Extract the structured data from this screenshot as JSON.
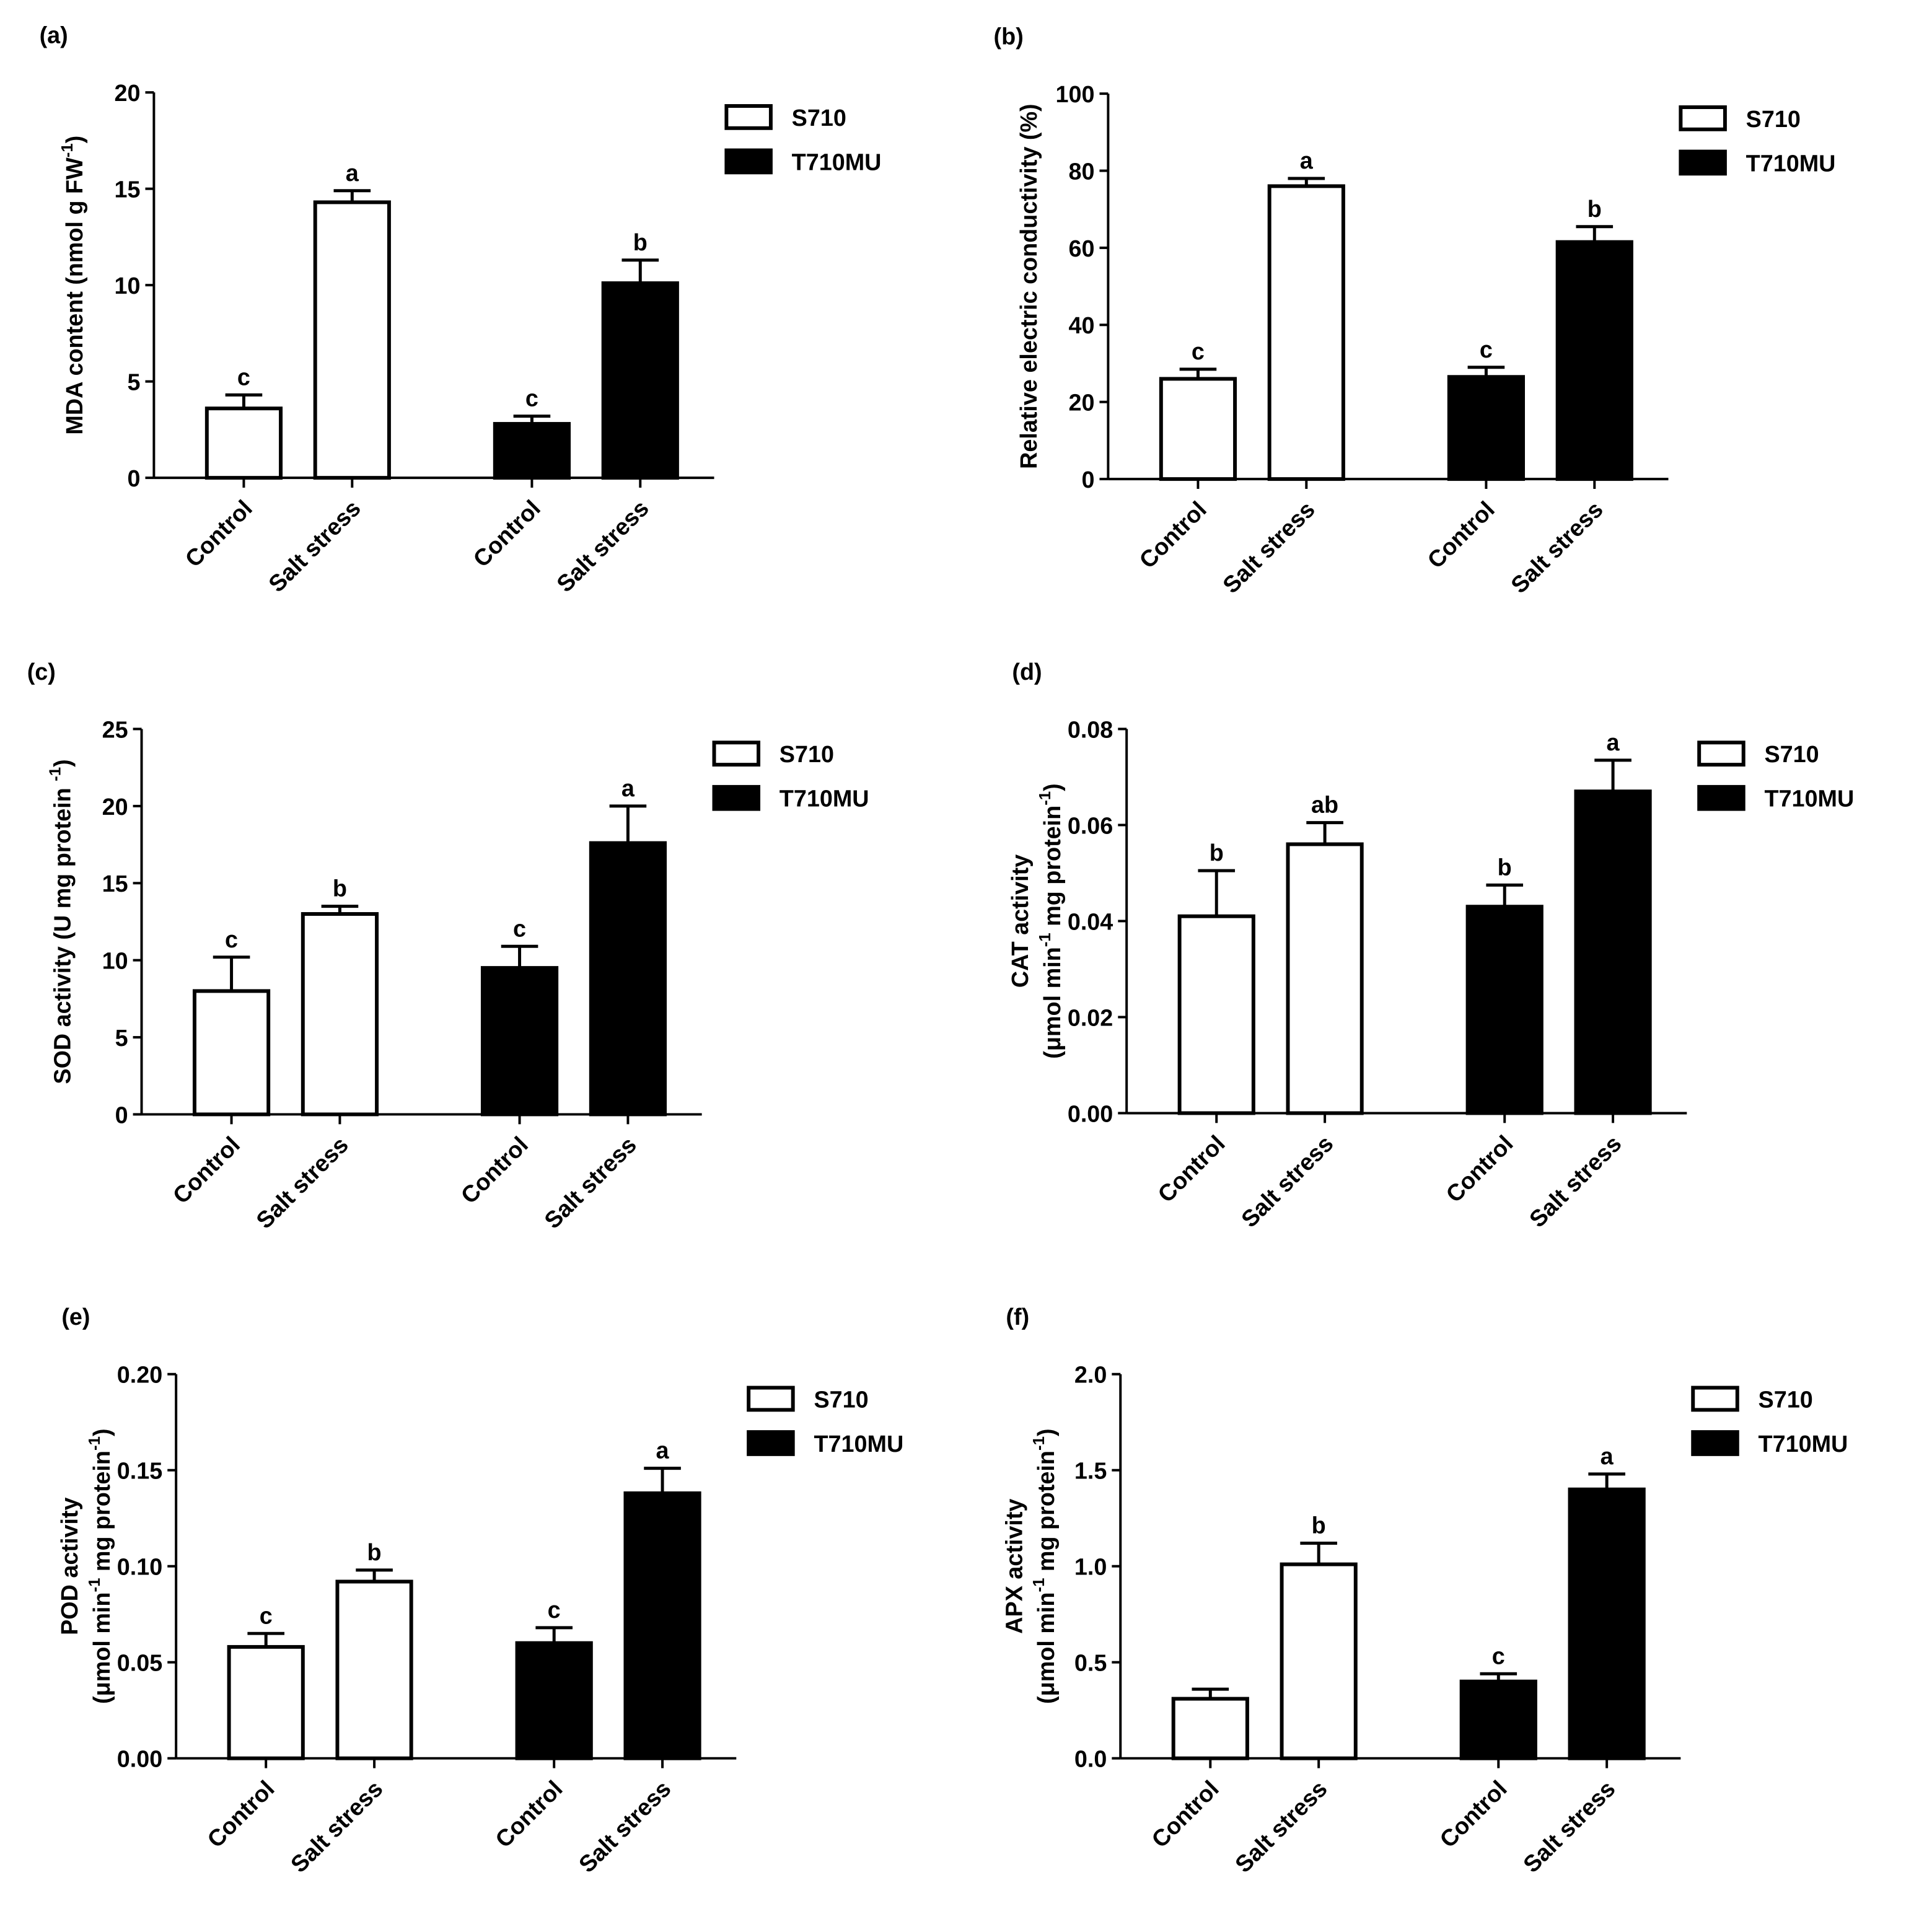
{
  "chart_data": [
    {
      "type": "bar",
      "panel": "(a)",
      "ylabel": [
        [
          "MDA content (nmol g FW",
          "-1",
          ")"
        ]
      ],
      "categories": [
        "Control",
        "Salt stress",
        "Control",
        "Salt stress"
      ],
      "series": [
        {
          "name": "S710",
          "color": "#ffffff",
          "values": [
            3.6,
            14.3,
            null,
            null
          ],
          "errors": [
            0.7,
            0.6,
            null,
            null
          ]
        },
        {
          "name": "T710MU",
          "color": "#000000",
          "values": [
            null,
            null,
            2.8,
            10.1
          ],
          "errors": [
            null,
            null,
            0.4,
            1.2
          ]
        }
      ],
      "annotations": [
        "c",
        "a",
        "c",
        "b"
      ],
      "ylim": [
        0,
        20
      ],
      "yticks": [
        0,
        5,
        10,
        15,
        20
      ]
    },
    {
      "type": "bar",
      "panel": "(b)",
      "ylabel": [
        [
          "Relative electric conductivity (%)"
        ]
      ],
      "categories": [
        "Control",
        "Salt stress",
        "Control",
        "Salt stress"
      ],
      "series": [
        {
          "name": "S710",
          "color": "#ffffff",
          "values": [
            26,
            76,
            null,
            null
          ],
          "errors": [
            2.5,
            2,
            null,
            null
          ]
        },
        {
          "name": "T710MU",
          "color": "#000000",
          "values": [
            null,
            null,
            26.5,
            61.5
          ],
          "errors": [
            null,
            null,
            2.5,
            4
          ]
        }
      ],
      "annotations": [
        "c",
        "a",
        "c",
        "b"
      ],
      "ylim": [
        0,
        100
      ],
      "yticks": [
        0,
        20,
        40,
        60,
        80,
        100
      ]
    },
    {
      "type": "bar",
      "panel": "(c)",
      "ylabel": [
        [
          "SOD activity (U mg protein ",
          "-1",
          ")"
        ]
      ],
      "categories": [
        "Control",
        "Salt stress",
        "Control",
        "Salt stress"
      ],
      "series": [
        {
          "name": "S710",
          "color": "#ffffff",
          "values": [
            8,
            13,
            null,
            null
          ],
          "errors": [
            2.2,
            0.5,
            null,
            null
          ]
        },
        {
          "name": "T710MU",
          "color": "#000000",
          "values": [
            null,
            null,
            9.5,
            17.6
          ],
          "errors": [
            null,
            null,
            1.4,
            2.4
          ]
        }
      ],
      "annotations": [
        "c",
        "b",
        "c",
        "a"
      ],
      "ylim": [
        0,
        25
      ],
      "yticks": [
        0,
        5,
        10,
        15,
        20,
        25
      ]
    },
    {
      "type": "bar",
      "panel": "(d)",
      "ylabel": [
        [
          "CAT activity"
        ],
        [
          "(μmol  min",
          "-1",
          " mg protein",
          "-1",
          ")"
        ]
      ],
      "categories": [
        "Control",
        "Salt stress",
        "Control",
        "Salt stress"
      ],
      "series": [
        {
          "name": "S710",
          "color": "#ffffff",
          "values": [
            0.041,
            0.056,
            null,
            null
          ],
          "errors": [
            0.0095,
            0.0045,
            null,
            null
          ]
        },
        {
          "name": "T710MU",
          "color": "#000000",
          "values": [
            null,
            null,
            0.043,
            0.067
          ],
          "errors": [
            null,
            null,
            0.0045,
            0.0065
          ]
        }
      ],
      "annotations": [
        "b",
        "ab",
        "b",
        "a"
      ],
      "ylim": [
        0,
        0.08
      ],
      "yticks": [
        {
          "value": 0,
          "label": "0.00"
        },
        0.02,
        0.04,
        0.06,
        0.08
      ]
    },
    {
      "type": "bar",
      "panel": "(e)",
      "ylabel": [
        [
          "POD activity"
        ],
        [
          "(μmol  min",
          "-1",
          " mg protein",
          "-1",
          ")"
        ]
      ],
      "categories": [
        "Control",
        "Salt stress",
        "Control",
        "Salt stress"
      ],
      "series": [
        {
          "name": "S710",
          "color": "#ffffff",
          "values": [
            0.058,
            0.092,
            null,
            null
          ],
          "errors": [
            0.007,
            0.006,
            null,
            null
          ]
        },
        {
          "name": "T710MU",
          "color": "#000000",
          "values": [
            null,
            null,
            0.06,
            0.138
          ],
          "errors": [
            null,
            null,
            0.008,
            0.013
          ]
        }
      ],
      "annotations": [
        "c",
        "b",
        "c",
        "a"
      ],
      "ylim": [
        0,
        0.2
      ],
      "yticks": [
        {
          "value": 0,
          "label": "0.00"
        },
        0.05,
        {
          "value": 0.1,
          "label": "0.10"
        },
        0.15,
        {
          "value": 0.2,
          "label": "0.20"
        }
      ]
    },
    {
      "type": "bar",
      "panel": "(f)",
      "ylabel": [
        [
          "APX activity"
        ],
        [
          "(μmol  min",
          "-1",
          " mg protein",
          "-1",
          ")"
        ]
      ],
      "categories": [
        "Control",
        "Salt stress",
        "Control",
        "Salt stress"
      ],
      "series": [
        {
          "name": "S710",
          "color": "#ffffff",
          "values": [
            0.31,
            1.01,
            null,
            null
          ],
          "errors": [
            0.05,
            0.11,
            null,
            null
          ]
        },
        {
          "name": "T710MU",
          "color": "#000000",
          "values": [
            null,
            null,
            0.4,
            1.4
          ],
          "errors": [
            null,
            null,
            0.04,
            0.08
          ]
        }
      ],
      "annotations": [
        null,
        "b",
        "c",
        "a"
      ],
      "ylim": [
        0,
        2
      ],
      "yticks": [
        {
          "value": 0,
          "label": "0.0"
        },
        0.5,
        {
          "value": 1,
          "label": "1.0"
        },
        1.5,
        {
          "value": 2,
          "label": "2.0"
        }
      ]
    }
  ]
}
